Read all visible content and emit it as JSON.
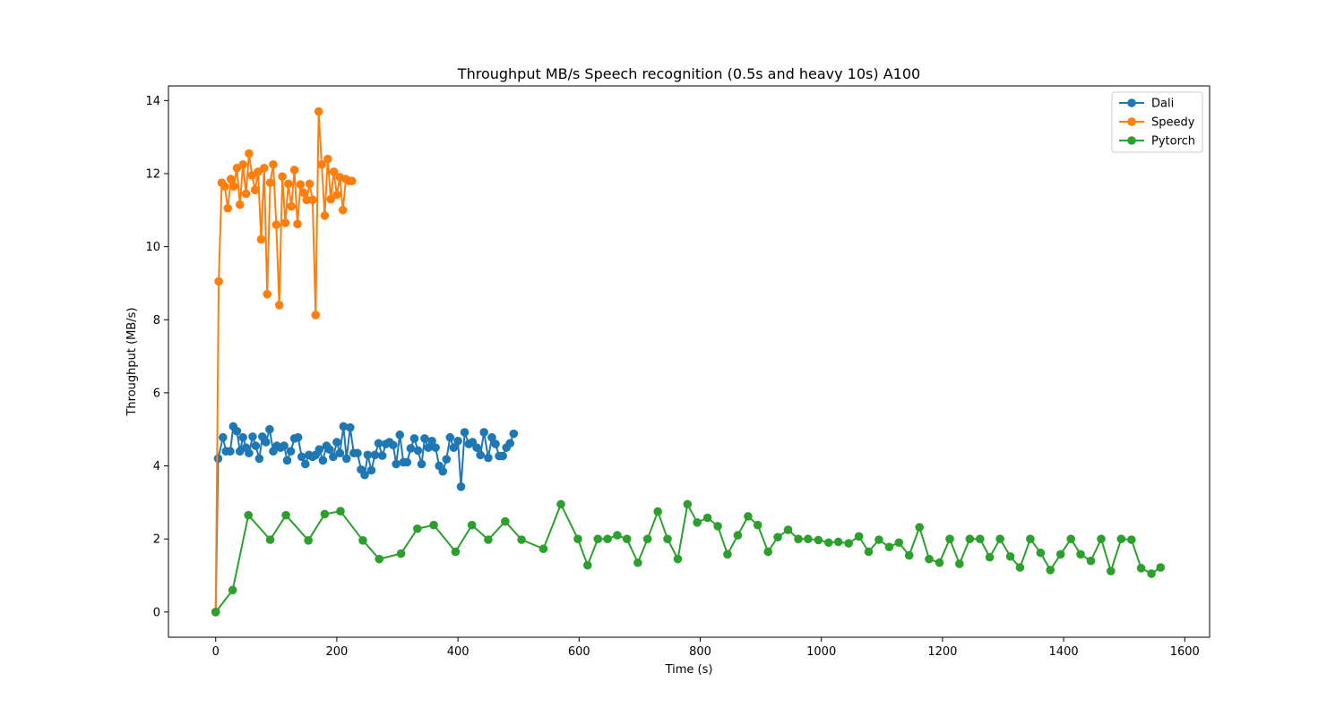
{
  "chart_data": {
    "type": "line",
    "title": "Throughput MB/s Speech recognition (0.5s and heavy 10s) A100",
    "xlabel": "Time (s)",
    "ylabel": "Throughput (MB/s)",
    "xlim": [
      -78,
      1641
    ],
    "ylim": [
      -0.69,
      14.4
    ],
    "xticks": [
      0,
      200,
      400,
      600,
      800,
      1000,
      1200,
      1400,
      1600
    ],
    "yticks": [
      0,
      2,
      4,
      6,
      8,
      10,
      12,
      14
    ],
    "grid": false,
    "legend_position": "top-right",
    "series": [
      {
        "name": "Dali",
        "color": "#1f77b4",
        "x": [
          0,
          4,
          12,
          17,
          24,
          29,
          35,
          40,
          45,
          50,
          55,
          61,
          66,
          72,
          77,
          83,
          89,
          95,
          101,
          107,
          113,
          118,
          124,
          130,
          136,
          142,
          148,
          154,
          160,
          165,
          171,
          177,
          183,
          188,
          194,
          200,
          205,
          211,
          216,
          222,
          228,
          234,
          240,
          246,
          251,
          257,
          263,
          269,
          275,
          281,
          287,
          293,
          298,
          304,
          310,
          316,
          322,
          328,
          334,
          340,
          345,
          351,
          357,
          363,
          369,
          375,
          381,
          387,
          393,
          400,
          405,
          411,
          418,
          424,
          431,
          437,
          443,
          450,
          456,
          462,
          468,
          474,
          480,
          486,
          492
        ],
        "y": [
          0.0,
          4.2,
          4.78,
          4.4,
          4.4,
          5.08,
          4.95,
          4.4,
          4.78,
          4.5,
          4.35,
          4.8,
          4.55,
          4.2,
          4.8,
          4.65,
          5.0,
          4.4,
          4.55,
          4.5,
          4.55,
          4.15,
          4.4,
          4.75,
          4.78,
          4.25,
          4.05,
          4.3,
          4.25,
          4.3,
          4.45,
          4.15,
          4.55,
          4.45,
          4.25,
          4.65,
          4.35,
          5.08,
          4.2,
          5.05,
          4.35,
          4.35,
          3.9,
          3.75,
          4.3,
          3.88,
          4.3,
          4.62,
          4.28,
          4.6,
          4.65,
          4.57,
          4.05,
          4.85,
          4.1,
          4.1,
          4.48,
          4.75,
          4.42,
          4.05,
          4.75,
          4.5,
          4.68,
          4.5,
          4.0,
          3.85,
          4.18,
          4.78,
          4.5,
          4.68,
          3.43,
          4.92,
          4.6,
          4.65,
          4.5,
          4.3,
          4.92,
          4.22,
          4.78,
          4.6,
          4.27,
          4.27,
          4.5,
          4.62,
          4.88
        ]
      },
      {
        "name": "Speedy",
        "color": "#ff7f0e",
        "x": [
          0,
          5,
          10,
          15,
          20,
          25,
          30,
          35,
          40,
          45,
          50,
          55,
          60,
          65,
          70,
          75,
          80,
          85,
          90,
          95,
          100,
          105,
          110,
          115,
          120,
          125,
          130,
          135,
          140,
          145,
          150,
          155,
          160,
          165,
          170,
          175,
          180,
          185,
          190,
          195,
          200,
          205,
          210,
          215,
          220,
          225
        ],
        "y": [
          0.0,
          9.05,
          11.75,
          11.65,
          11.05,
          11.85,
          11.65,
          12.15,
          11.15,
          12.25,
          11.45,
          12.55,
          11.95,
          11.55,
          12.05,
          10.2,
          12.15,
          8.7,
          11.75,
          12.25,
          10.6,
          8.4,
          11.92,
          10.65,
          11.72,
          11.1,
          12.1,
          10.62,
          11.7,
          11.48,
          11.28,
          11.72,
          11.28,
          8.13,
          13.7,
          12.25,
          10.85,
          12.4,
          11.3,
          12.05,
          11.42,
          11.9,
          11.0,
          11.85,
          11.8,
          11.8
        ]
      },
      {
        "name": "Pytorch",
        "color": "#2ca02c",
        "x": [
          0,
          28,
          54,
          90,
          116,
          153,
          180,
          206,
          243,
          270,
          306,
          333,
          360,
          396,
          423,
          450,
          478,
          505,
          541,
          570,
          598,
          614,
          631,
          647,
          663,
          679,
          697,
          713,
          730,
          746,
          763,
          779,
          795,
          812,
          829,
          845,
          862,
          879,
          895,
          912,
          928,
          945,
          962,
          978,
          995,
          1012,
          1028,
          1045,
          1062,
          1078,
          1095,
          1112,
          1128,
          1145,
          1162,
          1178,
          1195,
          1212,
          1228,
          1245,
          1262,
          1278,
          1295,
          1312,
          1328,
          1345,
          1362,
          1378,
          1395,
          1412,
          1428,
          1445,
          1462,
          1478,
          1495,
          1512,
          1528,
          1545,
          1560
        ],
        "y": [
          0.0,
          0.6,
          2.65,
          1.98,
          2.65,
          1.96,
          2.68,
          2.76,
          1.96,
          1.45,
          1.6,
          2.28,
          2.38,
          1.65,
          2.38,
          1.98,
          2.48,
          1.98,
          1.73,
          2.95,
          2.0,
          1.28,
          2.0,
          2.0,
          2.1,
          2.0,
          1.35,
          2.0,
          2.75,
          2.0,
          1.45,
          2.95,
          2.45,
          2.58,
          2.35,
          1.58,
          2.1,
          2.62,
          2.38,
          1.65,
          2.05,
          2.25,
          2.0,
          2.0,
          1.97,
          1.9,
          1.92,
          1.88,
          2.07,
          1.65,
          1.98,
          1.78,
          1.9,
          1.55,
          2.32,
          1.45,
          1.35,
          2.0,
          1.32,
          2.0,
          2.0,
          1.5,
          2.0,
          1.52,
          1.22,
          2.0,
          1.62,
          1.15,
          1.58,
          2.0,
          1.58,
          1.4,
          2.0,
          1.12,
          2.0,
          1.98,
          1.2,
          1.05,
          1.22
        ]
      }
    ]
  }
}
